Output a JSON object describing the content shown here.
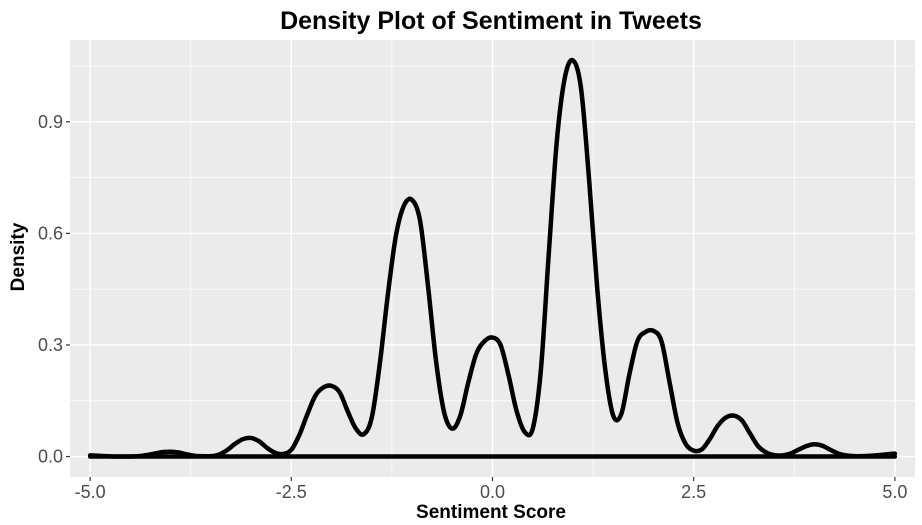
{
  "chart_data": {
    "type": "line",
    "title": "Density Plot of Sentiment in Tweets",
    "xlabel": "Sentiment Score",
    "ylabel": "Density",
    "xlim": [
      -5.25,
      5.25
    ],
    "ylim": [
      -0.055,
      1.12
    ],
    "x_ticks": [
      -5.0,
      -2.5,
      0.0,
      2.5,
      5.0
    ],
    "x_tick_labels": [
      "-5.0",
      "-2.5",
      "0.0",
      "2.5",
      "5.0"
    ],
    "y_ticks": [
      0.0,
      0.3,
      0.6,
      0.9
    ],
    "y_tick_labels": [
      "0.0",
      "0.3",
      "0.6",
      "0.9"
    ],
    "grid": true,
    "background": "#ebebeb",
    "grid_color": "#ffffff",
    "line_color": "#000000",
    "series": [
      {
        "x": [
          -5.0,
          -4.9,
          -4.8,
          -4.7,
          -4.6,
          -4.5,
          -4.4,
          -4.3,
          -4.2,
          -4.1,
          -4.0,
          -3.9,
          -3.8,
          -3.7,
          -3.6,
          -3.5,
          -3.4,
          -3.3,
          -3.2,
          -3.1,
          -3.0,
          -2.9,
          -2.8,
          -2.7,
          -2.6,
          -2.5,
          -2.4,
          -2.3,
          -2.2,
          -2.1,
          -2.0,
          -1.9,
          -1.8,
          -1.7,
          -1.6,
          -1.5,
          -1.4,
          -1.3,
          -1.2,
          -1.1,
          -1.0,
          -0.9,
          -0.8,
          -0.7,
          -0.6,
          -0.5,
          -0.4,
          -0.3,
          -0.2,
          -0.1,
          0.0,
          0.1,
          0.2,
          0.3,
          0.4,
          0.5,
          0.6,
          0.7,
          0.8,
          0.9,
          1.0,
          1.1,
          1.2,
          1.3,
          1.4,
          1.5,
          1.6,
          1.7,
          1.8,
          1.9,
          2.0,
          2.1,
          2.2,
          2.3,
          2.4,
          2.5,
          2.6,
          2.7,
          2.8,
          2.9,
          3.0,
          3.1,
          3.2,
          3.3,
          3.4,
          3.5,
          3.6,
          3.7,
          3.8,
          3.9,
          4.0,
          4.1,
          4.2,
          4.3,
          4.4,
          4.5,
          4.6,
          4.7,
          4.8,
          4.9,
          5.0
        ],
        "y": [
          0.003,
          0.002,
          0.001,
          0.0,
          0.0,
          0.0,
          0.001,
          0.004,
          0.008,
          0.012,
          0.013,
          0.011,
          0.006,
          0.002,
          0.001,
          0.001,
          0.005,
          0.017,
          0.034,
          0.047,
          0.05,
          0.041,
          0.023,
          0.01,
          0.007,
          0.018,
          0.058,
          0.114,
          0.164,
          0.186,
          0.19,
          0.173,
          0.122,
          0.076,
          0.06,
          0.105,
          0.25,
          0.436,
          0.594,
          0.675,
          0.69,
          0.634,
          0.456,
          0.254,
          0.118,
          0.075,
          0.11,
          0.2,
          0.277,
          0.31,
          0.32,
          0.3,
          0.218,
          0.122,
          0.066,
          0.075,
          0.23,
          0.548,
          0.85,
          1.02,
          1.065,
          0.99,
          0.745,
          0.456,
          0.236,
          0.11,
          0.114,
          0.22,
          0.31,
          0.335,
          0.338,
          0.31,
          0.2,
          0.09,
          0.034,
          0.016,
          0.019,
          0.047,
          0.083,
          0.105,
          0.11,
          0.097,
          0.062,
          0.028,
          0.011,
          0.004,
          0.003,
          0.008,
          0.018,
          0.028,
          0.033,
          0.029,
          0.018,
          0.008,
          0.003,
          0.001,
          0.001,
          0.002,
          0.004,
          0.006,
          0.008
        ]
      }
    ],
    "baseline_y": 0.0
  }
}
